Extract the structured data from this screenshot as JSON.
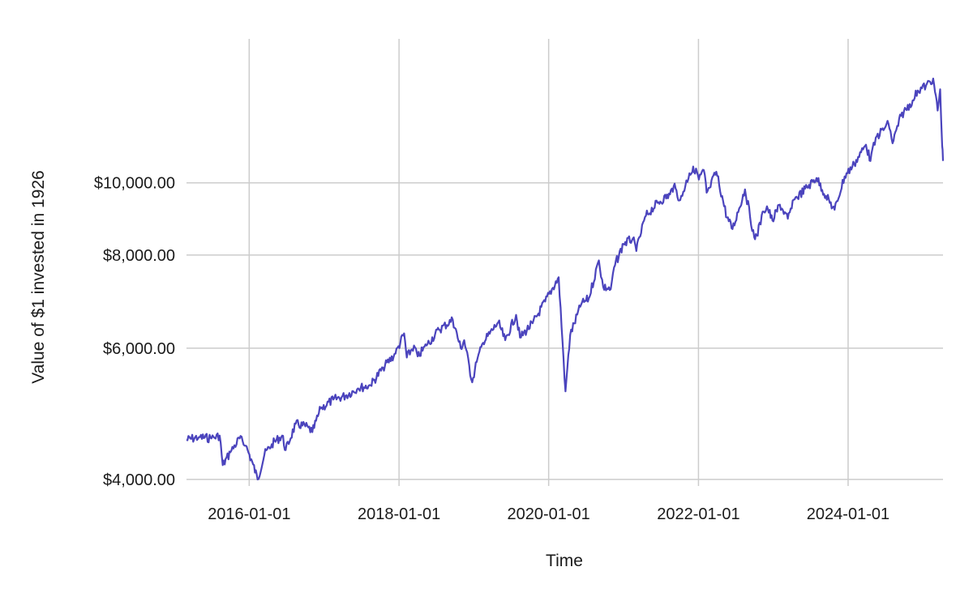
{
  "chart_data": {
    "type": "line",
    "title": "",
    "xlabel": "Time",
    "ylabel": "Value of $1 invested in 1926",
    "y_scale": "log",
    "grid": true,
    "legend": "none",
    "xlim": [
      "2015-03-01",
      "2025-04-08"
    ],
    "ylim": [
      3920,
      15600
    ],
    "x_ticks": [
      {
        "date": "2016-01-01",
        "label": "2016-01-01"
      },
      {
        "date": "2018-01-01",
        "label": "2018-01-01"
      },
      {
        "date": "2020-01-01",
        "label": "2020-01-01"
      },
      {
        "date": "2022-01-01",
        "label": "2022-01-01"
      },
      {
        "date": "2024-01-01",
        "label": "2024-01-01"
      }
    ],
    "y_ticks": [
      {
        "value": 4000,
        "label": "$4,000.00"
      },
      {
        "value": 6000,
        "label": "$6,000.00"
      },
      {
        "value": 8000,
        "label": "$8,000.00"
      },
      {
        "value": 10000,
        "label": "$10,000.00"
      }
    ],
    "series": [
      {
        "color": "#4b44bd",
        "x": [
          "2015-03-01",
          "2015-05-01",
          "2015-07-01",
          "2015-08-10",
          "2015-08-25",
          "2015-10-01",
          "2015-11-15",
          "2015-12-15",
          "2016-01-20",
          "2016-02-11",
          "2016-03-15",
          "2016-04-20",
          "2016-06-10",
          "2016-06-27",
          "2016-08-15",
          "2016-10-15",
          "2016-11-04",
          "2016-12-15",
          "2017-02-15",
          "2017-04-15",
          "2017-06-15",
          "2017-08-15",
          "2017-10-15",
          "2017-12-15",
          "2018-01-26",
          "2018-02-08",
          "2018-03-15",
          "2018-04-02",
          "2018-05-15",
          "2018-07-15",
          "2018-09-20",
          "2018-10-29",
          "2018-11-15",
          "2018-12-24",
          "2019-01-15",
          "2019-02-15",
          "2019-04-30",
          "2019-06-03",
          "2019-07-26",
          "2019-08-14",
          "2019-10-15",
          "2019-12-15",
          "2020-02-19",
          "2020-03-23",
          "2020-04-15",
          "2020-06-08",
          "2020-07-15",
          "2020-09-02",
          "2020-09-23",
          "2020-10-30",
          "2020-11-15",
          "2020-12-31",
          "2021-02-15",
          "2021-03-04",
          "2021-04-15",
          "2021-06-15",
          "2021-08-15",
          "2021-09-02",
          "2021-10-04",
          "2021-11-18",
          "2021-12-20",
          "2022-01-03",
          "2022-01-27",
          "2022-02-10",
          "2022-02-24",
          "2022-03-29",
          "2022-05-20",
          "2022-06-16",
          "2022-08-16",
          "2022-09-30",
          "2022-10-12",
          "2022-11-15",
          "2022-12-01",
          "2022-12-28",
          "2023-02-02",
          "2023-03-13",
          "2023-04-15",
          "2023-06-15",
          "2023-07-31",
          "2023-09-15",
          "2023-10-27",
          "2023-12-15",
          "2024-01-31",
          "2024-03-28",
          "2024-04-19",
          "2024-05-15",
          "2024-07-16",
          "2024-08-05",
          "2024-09-15",
          "2024-11-11",
          "2024-12-06",
          "2025-01-15",
          "2025-02-19",
          "2025-03-13",
          "2025-03-25",
          "2025-04-04",
          "2025-04-08"
        ],
        "y": [
          4520,
          4560,
          4540,
          4580,
          4180,
          4350,
          4540,
          4440,
          4190,
          4000,
          4320,
          4460,
          4580,
          4380,
          4750,
          4700,
          4630,
          4980,
          5120,
          5180,
          5300,
          5350,
          5650,
          5900,
          6280,
          5830,
          6050,
          5850,
          6050,
          6350,
          6550,
          6000,
          6150,
          5400,
          5750,
          6100,
          6500,
          6150,
          6650,
          6200,
          6480,
          6930,
          7470,
          5250,
          6250,
          6870,
          7000,
          7870,
          7250,
          7200,
          7700,
          8280,
          8420,
          8100,
          9000,
          9400,
          9650,
          9900,
          9480,
          10300,
          10450,
          10100,
          10400,
          9700,
          9850,
          10350,
          8980,
          8670,
          9800,
          8450,
          8500,
          9150,
          9300,
          8900,
          9350,
          8950,
          9500,
          9860,
          10150,
          9600,
          9200,
          10200,
          10600,
          11250,
          10700,
          11500,
          12000,
          11300,
          12300,
          12900,
          13300,
          13500,
          13800,
          12500,
          13350,
          11200,
          10700
        ]
      }
    ]
  }
}
